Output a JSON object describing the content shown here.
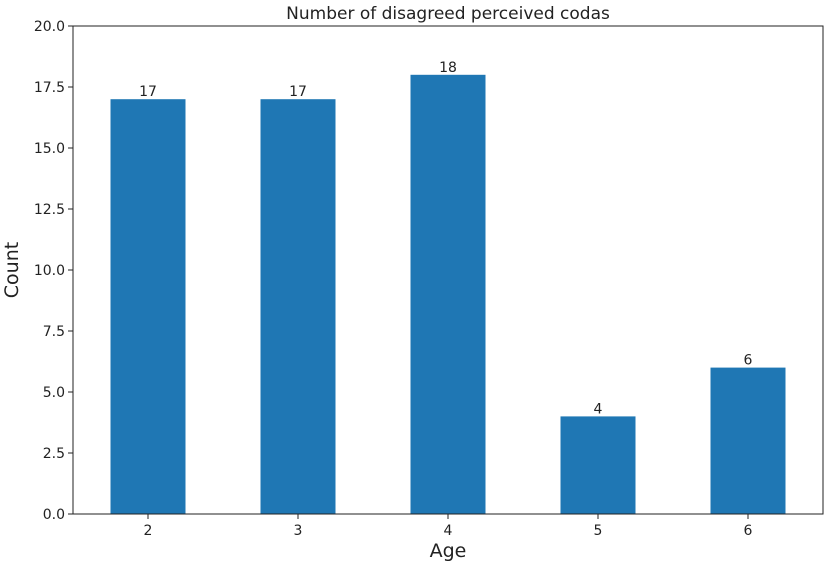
{
  "chart_data": {
    "type": "bar",
    "title": "Number of disagreed perceived codas",
    "xlabel": "Age",
    "ylabel": "Count",
    "categories": [
      "2",
      "3",
      "4",
      "5",
      "6"
    ],
    "values": [
      17,
      17,
      18,
      4,
      6
    ],
    "data_labels": [
      "17",
      "17",
      "18",
      "4",
      "6"
    ],
    "ylim": [
      0,
      20
    ],
    "yticks": [
      "0.0",
      "2.5",
      "5.0",
      "7.5",
      "10.0",
      "12.5",
      "15.0",
      "17.5",
      "20.0"
    ],
    "bar_color": "#1f77b4",
    "grid": false,
    "legend": "none"
  }
}
